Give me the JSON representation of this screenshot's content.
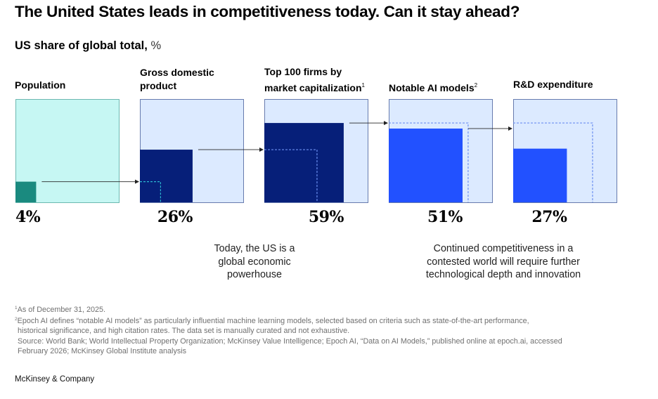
{
  "header": {
    "title": "The United States leads in competitiveness today. Can it stay ahead?",
    "subtitle": "US share of global total,",
    "subtitle_unit": "%"
  },
  "chart_data": {
    "type": "proportional-area squares",
    "title": "The United States leads in competitiveness today. Can it stay ahead?",
    "subtitle": "US share of global total, %",
    "unit": "%",
    "categories": [
      {
        "label_lines": [
          "Population"
        ],
        "footnote": "",
        "value": 4,
        "value_label": "4%",
        "theme": "teal",
        "compare_to": null
      },
      {
        "label_lines": [
          "Gross domestic",
          "product"
        ],
        "footnote": "",
        "value": 26,
        "value_label": "26%",
        "theme": "navy",
        "compare_to": 0
      },
      {
        "label_lines": [
          "Top 100 firms by",
          "market capitalization"
        ],
        "footnote": "1",
        "value": 59,
        "value_label": "59%",
        "theme": "navy",
        "compare_to": 1
      },
      {
        "label_lines": [
          "Notable AI models"
        ],
        "footnote": "2",
        "value": 51,
        "value_label": "51%",
        "theme": "blue",
        "compare_to": 2
      },
      {
        "label_lines": [
          "R&D expenditure"
        ],
        "footnote": "",
        "value": 27,
        "value_label": "27%",
        "theme": "blue",
        "compare_to": 2
      }
    ],
    "annotations": [
      {
        "text_lines": [
          "Today, the US is a",
          "global economic",
          "powerhouse"
        ],
        "spans": "Population – Top 100 firms"
      },
      {
        "text_lines": [
          "Continued competitiveness in a",
          "contested world will require further",
          "technological depth and innovation"
        ],
        "spans": "Notable AI models – R&D expenditure"
      }
    ],
    "colors": {
      "teal_fill": "#1a8a7f",
      "teal_bg": "#c6f7f3",
      "teal_border": "#1e8a80",
      "navy_fill": "#061f79",
      "blue_fill": "#2251ff",
      "blue_bg": "#dceaff",
      "blue_border": "#0e2a78",
      "dash_teal": "#2ab7d0",
      "dash_blue": "#6b8ff0",
      "arrow": "#222222"
    }
  },
  "footnotes": {
    "note1_marker": "1",
    "note1": "As of December 31, 2025.",
    "note2_marker": "2",
    "note2_line1": "Epoch AI defines “notable AI models” as particularly influential machine learning models, selected based on criteria such as state-of-the-art performance,",
    "note2_line2": "historical significance, and high citation rates. The data set is manually curated and not exhaustive.",
    "source_line1": "Source: World Bank; World Intellectual Property Organization; McKinsey Value Intelligence; Epoch AI, “Data on AI Models,” published online at epoch.ai, accessed",
    "source_line2": "February 2026; McKinsey Global Institute analysis"
  },
  "brand": "McKinsey & Company"
}
